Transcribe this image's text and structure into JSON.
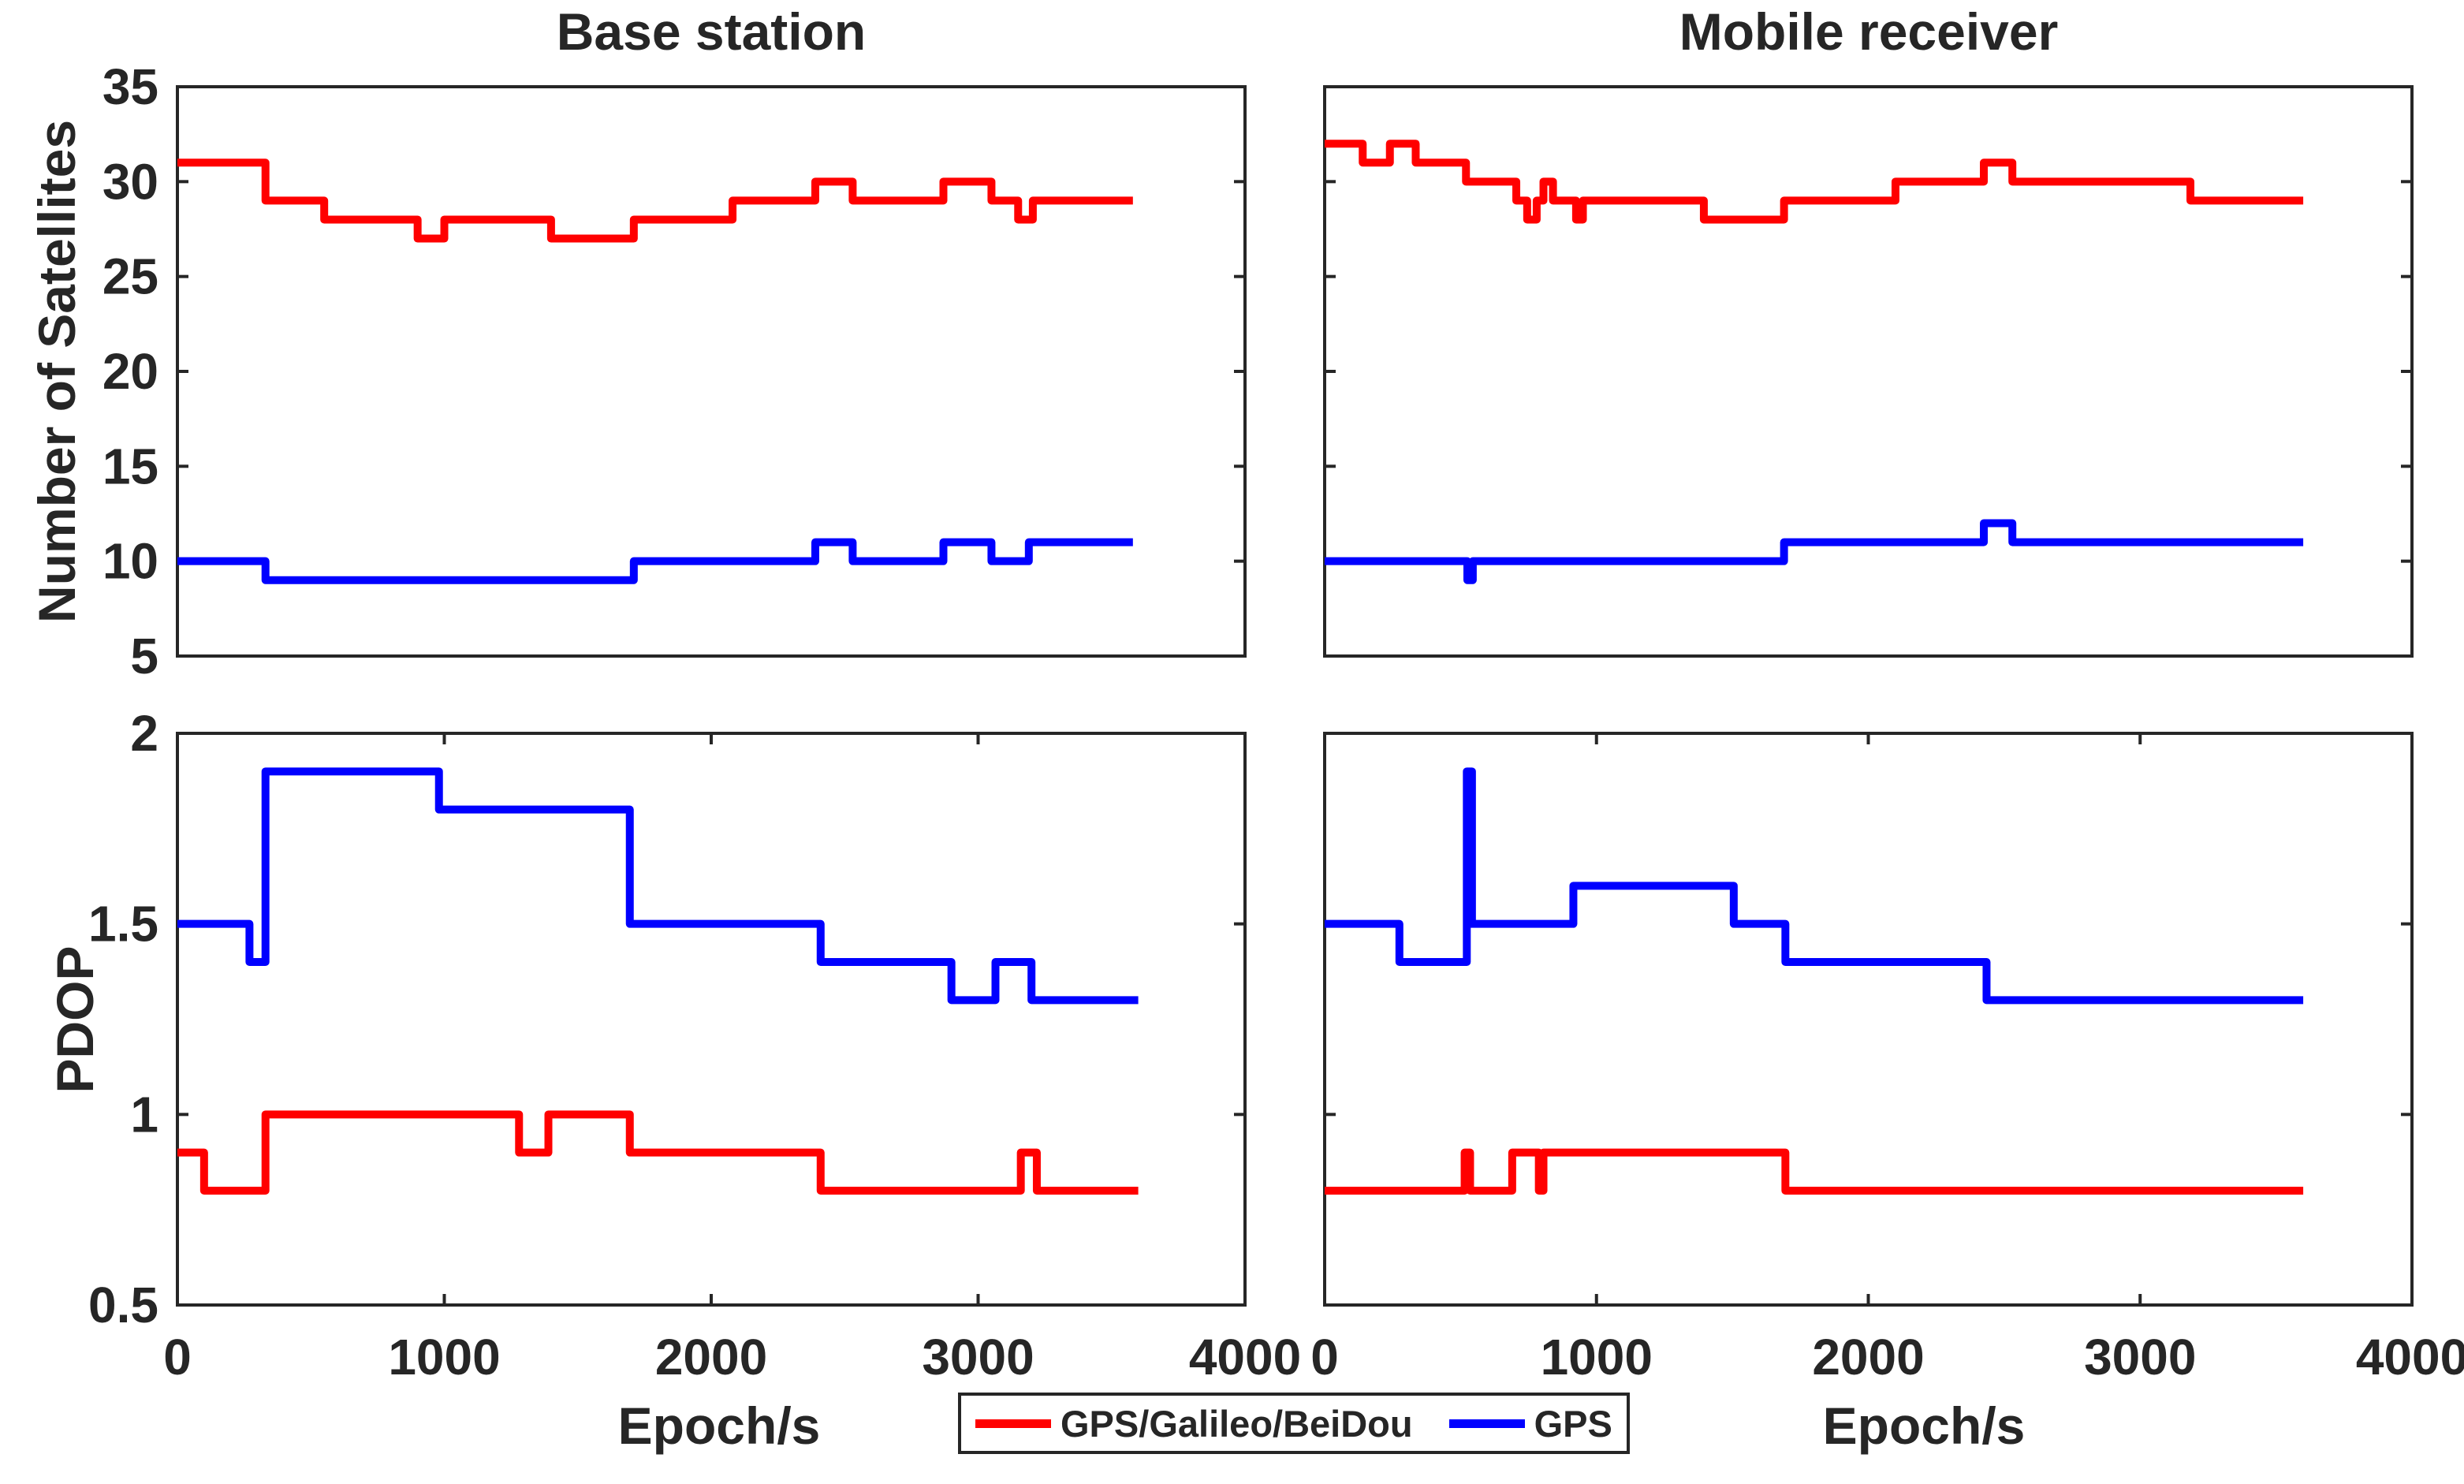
{
  "legend": {
    "items": [
      {
        "label": "GPS/Galileo/BeiDou",
        "color": "#ff0000"
      },
      {
        "label": "GPS",
        "color": "#0000ff"
      }
    ],
    "position": "bottom-center"
  },
  "colors": {
    "red": "#ff0000",
    "blue": "#0000ff",
    "axis": "#262626",
    "background": "#ffffff"
  },
  "chart_data": [
    {
      "type": "line",
      "position": "top-left",
      "title": "Base station",
      "ylabel": "Number of Satellites",
      "xlabel": "",
      "xlim": [
        0,
        4000
      ],
      "ylim": [
        5,
        35
      ],
      "yticks": [
        5,
        10,
        15,
        20,
        25,
        30,
        35
      ],
      "xticks": [
        0,
        1000,
        2000,
        3000,
        4000
      ],
      "show_xticks": false,
      "xtick_labels": false,
      "ytick_labels": true,
      "grid": false,
      "series": [
        {
          "name": "GPS/Galileo/BeiDou",
          "color": "#ff0000",
          "step_points": [
            [
              0,
              31
            ],
            [
              330,
              29
            ],
            [
              550,
              28
            ],
            [
              900,
              27
            ],
            [
              1000,
              28
            ],
            [
              1400,
              27
            ],
            [
              1710,
              28
            ],
            [
              2080,
              29
            ],
            [
              2390,
              30
            ],
            [
              2530,
              29
            ],
            [
              2870,
              30
            ],
            [
              3050,
              29
            ],
            [
              3150,
              28
            ],
            [
              3205,
              29
            ]
          ],
          "end_x": 3580
        },
        {
          "name": "GPS",
          "color": "#0000ff",
          "step_points": [
            [
              0,
              10
            ],
            [
              330,
              9
            ],
            [
              1710,
              10
            ],
            [
              2390,
              11
            ],
            [
              2530,
              10
            ],
            [
              2870,
              11
            ],
            [
              3050,
              10
            ],
            [
              3190,
              11
            ]
          ],
          "end_x": 3580
        }
      ]
    },
    {
      "type": "line",
      "position": "top-right",
      "title": "Mobile receiver",
      "ylabel": "",
      "xlabel": "",
      "xlim": [
        0,
        4000
      ],
      "ylim": [
        5,
        35
      ],
      "yticks": [
        5,
        10,
        15,
        20,
        25,
        30,
        35
      ],
      "xticks": [
        0,
        1000,
        2000,
        3000,
        4000
      ],
      "show_xticks": false,
      "xtick_labels": false,
      "ytick_labels": false,
      "grid": false,
      "series": [
        {
          "name": "GPS/Galileo/BeiDou",
          "color": "#ff0000",
          "step_points": [
            [
              0,
              32
            ],
            [
              140,
              31
            ],
            [
              240,
              32
            ],
            [
              335,
              31
            ],
            [
              520,
              30
            ],
            [
              705,
              29
            ],
            [
              745,
              28
            ],
            [
              780,
              29
            ],
            [
              805,
              30
            ],
            [
              840,
              29
            ],
            [
              925,
              28
            ],
            [
              950,
              29
            ],
            [
              1395,
              28
            ],
            [
              1690,
              29
            ],
            [
              2100,
              30
            ],
            [
              2425,
              31
            ],
            [
              2530,
              30
            ],
            [
              3185,
              29
            ]
          ],
          "end_x": 3600
        },
        {
          "name": "GPS",
          "color": "#0000ff",
          "step_points": [
            [
              0,
              10
            ],
            [
              525,
              9
            ],
            [
              545,
              10
            ],
            [
              1690,
              11
            ],
            [
              2425,
              12
            ],
            [
              2530,
              11
            ]
          ],
          "end_x": 3600
        }
      ]
    },
    {
      "type": "line",
      "position": "bottom-left",
      "title": "",
      "ylabel": "PDOP",
      "xlabel": "Epoch/s",
      "xlim": [
        0,
        4000
      ],
      "ylim": [
        0.5,
        2
      ],
      "yticks": [
        0.5,
        1,
        1.5,
        2
      ],
      "xticks": [
        0,
        1000,
        2000,
        3000,
        4000
      ],
      "show_xticks": true,
      "xtick_labels": true,
      "ytick_labels": true,
      "grid": false,
      "series": [
        {
          "name": "GPS/Galileo/BeiDou",
          "color": "#ff0000",
          "step_points": [
            [
              0,
              0.9
            ],
            [
              100,
              0.8
            ],
            [
              330,
              1
            ],
            [
              1280,
              0.9
            ],
            [
              1390,
              1
            ],
            [
              1695,
              0.9
            ],
            [
              2410,
              0.8
            ],
            [
              3160,
              0.9
            ],
            [
              3220,
              0.8
            ]
          ],
          "end_x": 3600
        },
        {
          "name": "GPS",
          "color": "#0000ff",
          "step_points": [
            [
              0,
              1.5
            ],
            [
              270,
              1.4
            ],
            [
              330,
              1.9
            ],
            [
              980,
              1.8
            ],
            [
              1695,
              1.5
            ],
            [
              2410,
              1.4
            ],
            [
              2900,
              1.3
            ],
            [
              3065,
              1.4
            ],
            [
              3200,
              1.3
            ]
          ],
          "end_x": 3600
        }
      ]
    },
    {
      "type": "line",
      "position": "bottom-right",
      "title": "",
      "ylabel": "",
      "xlabel": "Epoch/s",
      "xlim": [
        0,
        4000
      ],
      "ylim": [
        0.5,
        2
      ],
      "yticks": [
        0.5,
        1,
        1.5,
        2
      ],
      "xticks": [
        0,
        1000,
        2000,
        3000,
        4000
      ],
      "show_xticks": true,
      "xtick_labels": true,
      "ytick_labels": false,
      "grid": false,
      "series": [
        {
          "name": "GPS/Galileo/BeiDou",
          "color": "#ff0000",
          "step_points": [
            [
              0,
              0.8
            ],
            [
              515,
              0.9
            ],
            [
              535,
              0.8
            ],
            [
              690,
              0.9
            ],
            [
              788,
              0.8
            ],
            [
              805,
              0.9
            ],
            [
              1695,
              0.8
            ]
          ],
          "end_x": 3600
        },
        {
          "name": "GPS",
          "color": "#0000ff",
          "step_points": [
            [
              0,
              1.5
            ],
            [
              275,
              1.4
            ],
            [
              523,
              1.9
            ],
            [
              542,
              1.5
            ],
            [
              915,
              1.6
            ],
            [
              1505,
              1.5
            ],
            [
              1695,
              1.4
            ],
            [
              2435,
              1.3
            ]
          ],
          "end_x": 3600
        }
      ]
    }
  ]
}
